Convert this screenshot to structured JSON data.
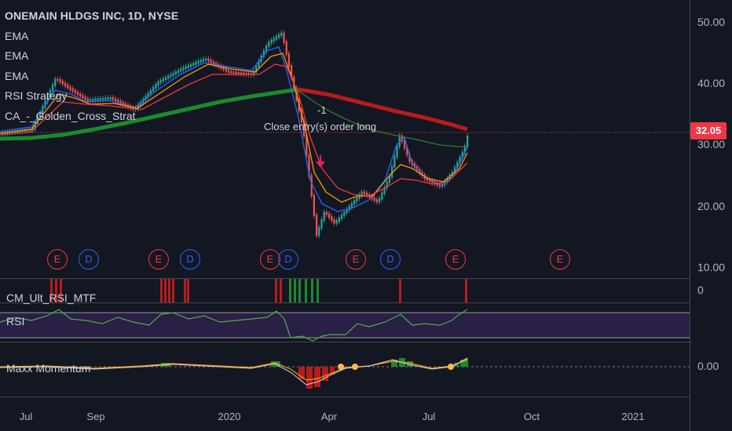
{
  "legend": {
    "title": "ONEMAIN HLDGS INC, 1D, NYSE",
    "items": [
      "EMA",
      "EMA",
      "EMA",
      "RSI Strategy",
      "CA_-_Golden_Cross_Strat"
    ]
  },
  "price_axis": {
    "labels": [
      "50.00",
      "40.00",
      "30.00",
      "20.00",
      "10.00"
    ],
    "last_price": "32.05"
  },
  "time_axis": {
    "labels": [
      "Jul",
      "Sep",
      "2020",
      "Apr",
      "Jul",
      "Oct",
      "2021"
    ]
  },
  "events": [
    {
      "type": "E"
    },
    {
      "type": "D"
    },
    {
      "type": "E"
    },
    {
      "type": "D"
    },
    {
      "type": "E"
    },
    {
      "type": "D"
    },
    {
      "type": "E"
    },
    {
      "type": "D"
    },
    {
      "type": "E"
    },
    {
      "type": "E"
    }
  ],
  "annotations": {
    "order_qty": "-1",
    "order_text": "Close entry(s) order long"
  },
  "panes": {
    "mtf": {
      "label": "CM_Ult_RSI_MTF",
      "axis": "0"
    },
    "rsi": {
      "label": "RSI"
    },
    "momentum": {
      "label": "Maxx Momentum",
      "axis": "0.00"
    }
  },
  "colors": {
    "background": "#131722",
    "up_candle": "#26a69a",
    "down_candle": "#ef5350",
    "ema_fast": "#2962ff",
    "ema_mid": "#ff9800",
    "ema_slow": "#f23645",
    "ema_200_bull": "#1b8a2e",
    "ema_200_bear": "#b71c1c",
    "rsi_line": "#4caf50",
    "rsi_band": "#2a1f44"
  }
}
